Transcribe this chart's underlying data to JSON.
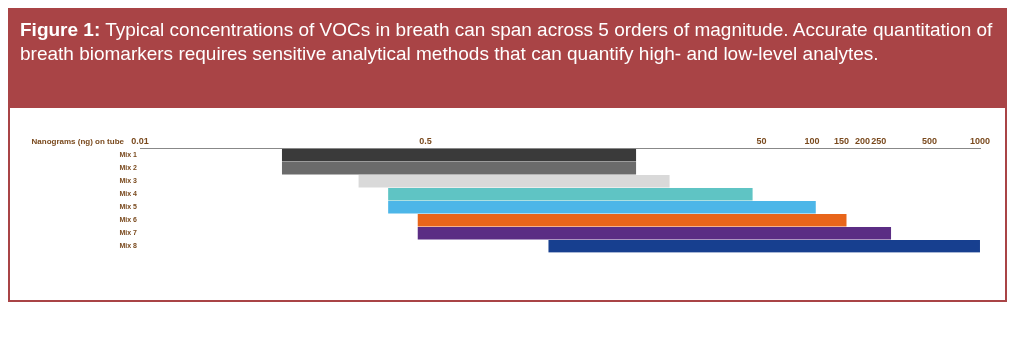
{
  "chart_data": {
    "type": "bar",
    "orientation": "horizontal",
    "title": "Figure 1: Typical concentrations of VOCs in breath can span across 5 orders of magnitude. Accurate quantitation of breath biomarkers requires sensitive analytical methods that can quantify high- and low-level analytes.",
    "xlabel": "Nanograms (ng) on tube",
    "categories": [
      "Mix 1",
      "Mix 2",
      "Mix 3",
      "Mix 4",
      "Mix 5",
      "Mix 6",
      "Mix 7",
      "Mix 8"
    ],
    "base": [
      0.07,
      0.07,
      0.2,
      0.3,
      0.3,
      0.45,
      0.45,
      2.7
    ],
    "values": [
      8.9,
      8.9,
      14,
      44,
      105,
      160,
      295,
      997
    ],
    "colors": [
      "#3a3a3a",
      "#6b6b6b",
      "#d9d9d9",
      "#5fc4c4",
      "#4db6e8",
      "#e8651a",
      "#5b2d84",
      "#173f8f"
    ],
    "xlim": [
      0.01,
      1000
    ],
    "xticks": [
      0.01,
      0.5,
      50,
      100,
      150,
      200,
      250,
      500,
      1000
    ],
    "log": "x",
    "grid": false,
    "legend": false
  }
}
